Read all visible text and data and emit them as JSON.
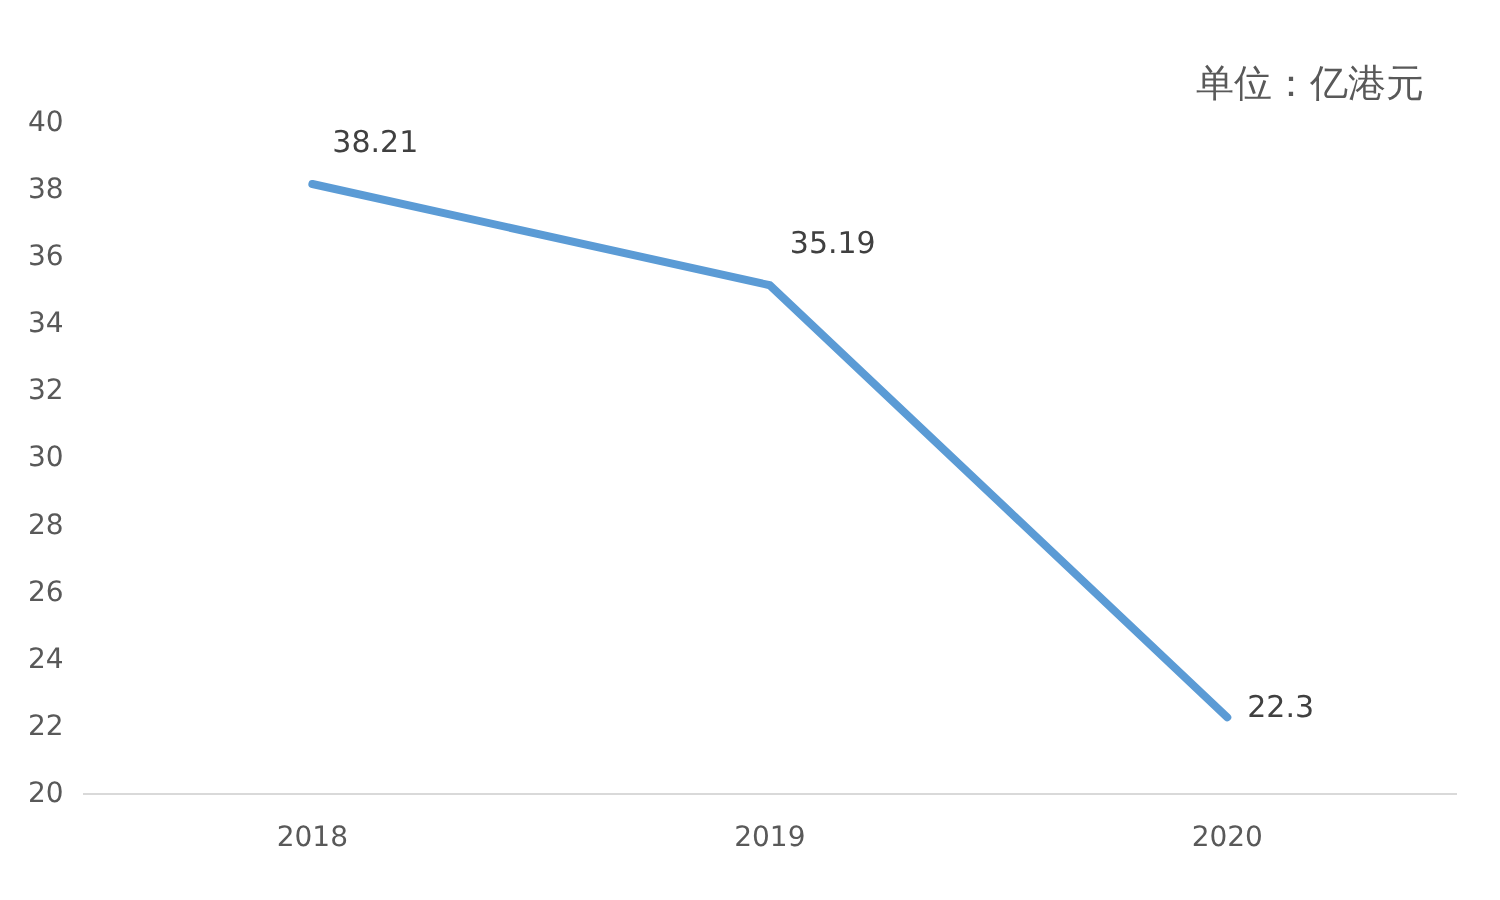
{
  "chart_data": {
    "type": "line",
    "categories": [
      "2018",
      "2019",
      "2020"
    ],
    "series": [
      {
        "color": "#5b9bd5",
        "values": [
          38.21,
          35.19,
          22.3
        ]
      }
    ],
    "ylim": [
      20,
      40
    ],
    "yticks": [
      20,
      22,
      24,
      26,
      28,
      30,
      32,
      34,
      36,
      38,
      40
    ],
    "grid": false,
    "legend": false,
    "marker": "none",
    "line_style": "solid",
    "data_labels": true,
    "annotations": [
      "单位：亿港元"
    ]
  }
}
